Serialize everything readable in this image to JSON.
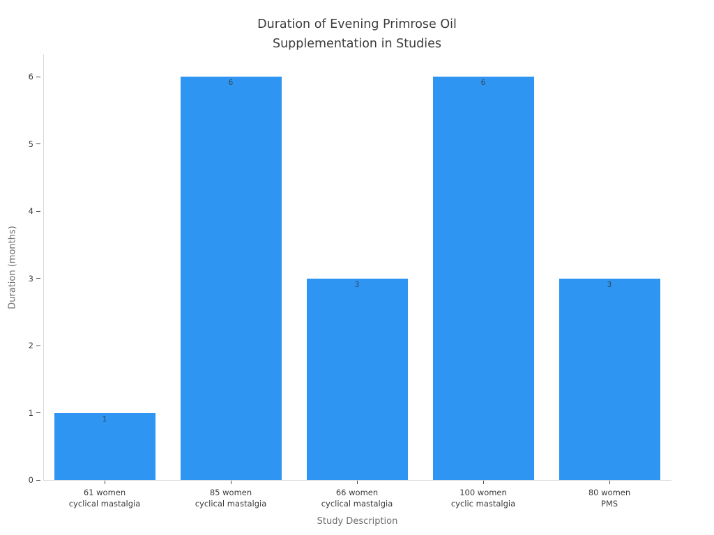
{
  "chart_data": {
    "type": "bar",
    "title": "Duration of Evening Primrose Oil\nSupplementation in Studies",
    "xlabel": "Study Description",
    "ylabel": "Duration (months)",
    "categories": [
      "61 women\ncyclical mastalgia",
      "85 women\ncyclical mastalgia",
      "66 women\ncyclical mastalgia",
      "100 women\ncyclic mastalgia",
      "80 women\nPMS"
    ],
    "values": [
      1,
      6,
      3,
      6,
      3
    ],
    "bar_value_labels": [
      "1",
      "6",
      "3",
      "6",
      "3"
    ],
    "yticks": [
      "0",
      "1",
      "2",
      "3",
      "4",
      "5",
      "6"
    ],
    "ylim": [
      0,
      6
    ],
    "grid": false,
    "legend": false,
    "bar_color": "#2e95f3"
  },
  "colors": {
    "bar": "#2e95f3",
    "axis_line": "#d9d9d9",
    "tick_mark": "#4a4a4a",
    "title_text": "#3b3b3b",
    "tick_text": "#3a3a3a",
    "axis_title_text": "#6e6e6e",
    "bar_label_text": "#38454f",
    "background": "#ffffff"
  }
}
